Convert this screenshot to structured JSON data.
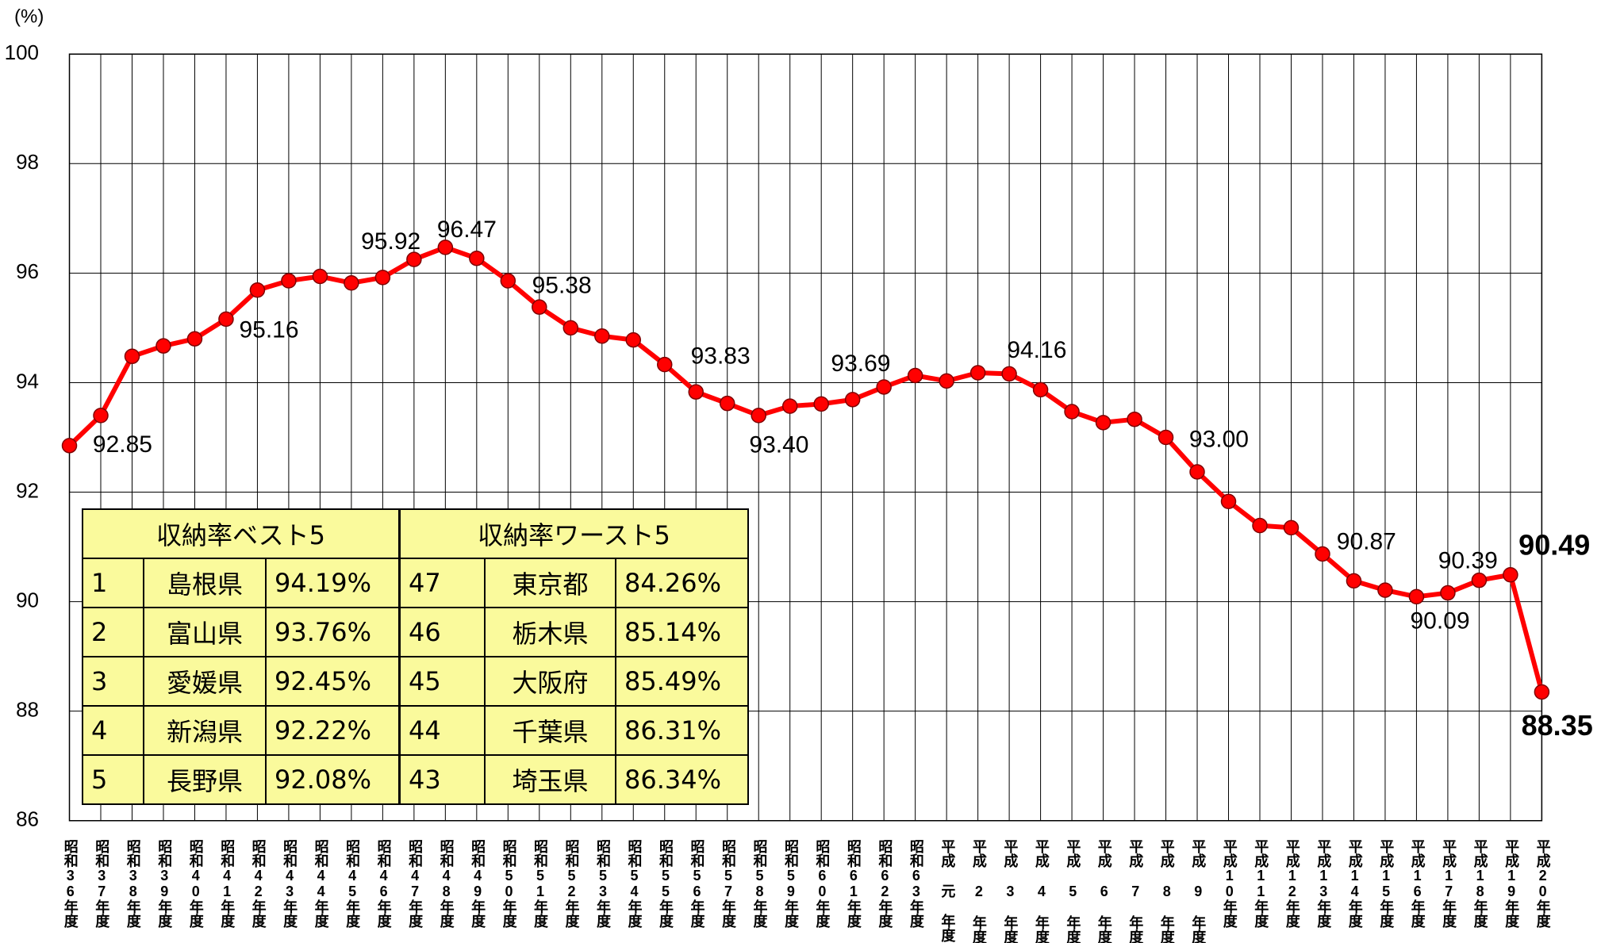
{
  "chart_data": {
    "type": "line",
    "y_unit_label": "(%)",
    "categories": [
      "昭和36年度",
      "昭和37年度",
      "昭和38年度",
      "昭和39年度",
      "昭和40年度",
      "昭和41年度",
      "昭和42年度",
      "昭和43年度",
      "昭和44年度",
      "昭和45年度",
      "昭和46年度",
      "昭和47年度",
      "昭和48年度",
      "昭和49年度",
      "昭和50年度",
      "昭和51年度",
      "昭和52年度",
      "昭和53年度",
      "昭和54年度",
      "昭和55年度",
      "昭和56年度",
      "昭和57年度",
      "昭和58年度",
      "昭和59年度",
      "昭和60年度",
      "昭和61年度",
      "昭和62年度",
      "昭和63年度",
      "平成 元 年度",
      "平成 2 年度",
      "平成 3 年度",
      "平成 4 年度",
      "平成 5 年度",
      "平成 6 年度",
      "平成 7 年度",
      "平成 8 年度",
      "平成 9 年度",
      "平成10年度",
      "平成11年度",
      "平成12年度",
      "平成13年度",
      "平成14年度",
      "平成15年度",
      "平成16年度",
      "平成17年度",
      "平成18年度",
      "平成19年度",
      "平成20年度"
    ],
    "series": [
      {
        "name": "収納率",
        "color": "#ff0000",
        "values": [
          92.85,
          93.4,
          94.48,
          94.67,
          94.8,
          95.16,
          95.69,
          95.86,
          95.94,
          95.82,
          95.92,
          96.25,
          96.47,
          96.27,
          95.86,
          95.38,
          95.0,
          94.85,
          94.78,
          94.33,
          93.83,
          93.62,
          93.4,
          93.57,
          93.61,
          93.69,
          93.92,
          94.13,
          94.03,
          94.18,
          94.16,
          93.87,
          93.47,
          93.27,
          93.33,
          93.0,
          92.37,
          91.83,
          91.39,
          91.35,
          90.87,
          90.38,
          90.21,
          90.09,
          90.16,
          90.39,
          90.49,
          88.35
        ],
        "value_labels": [
          "92.85",
          null,
          null,
          null,
          null,
          "95.16",
          null,
          null,
          null,
          null,
          "95.92",
          null,
          "96.47",
          null,
          null,
          "95.38",
          null,
          null,
          null,
          null,
          "93.83",
          null,
          "93.40",
          null,
          null,
          "93.69",
          null,
          null,
          null,
          null,
          "94.16",
          null,
          null,
          null,
          null,
          "93.00",
          null,
          null,
          null,
          null,
          "90.87",
          null,
          null,
          "90.09",
          null,
          "90.39",
          "90.49",
          "88.35"
        ]
      }
    ],
    "ylim": [
      86,
      100
    ],
    "yticks": [
      86,
      88,
      90,
      92,
      94,
      96,
      98,
      100
    ],
    "grid": true
  },
  "table": {
    "headers": [
      "収納率ベスト5",
      "収納率ワースト5"
    ],
    "rows": [
      [
        "1",
        "島根県",
        "94.19%",
        "47",
        "東京都",
        "84.26%"
      ],
      [
        "2",
        "富山県",
        "93.76%",
        "46",
        "栃木県",
        "85.14%"
      ],
      [
        "3",
        "愛媛県",
        "92.45%",
        "45",
        "大阪府",
        "85.49%"
      ],
      [
        "4",
        "新潟県",
        "92.22%",
        "44",
        "千葉県",
        "86.31%"
      ],
      [
        "5",
        "長野県",
        "92.08%",
        "43",
        "埼玉県",
        "86.34%"
      ]
    ]
  }
}
